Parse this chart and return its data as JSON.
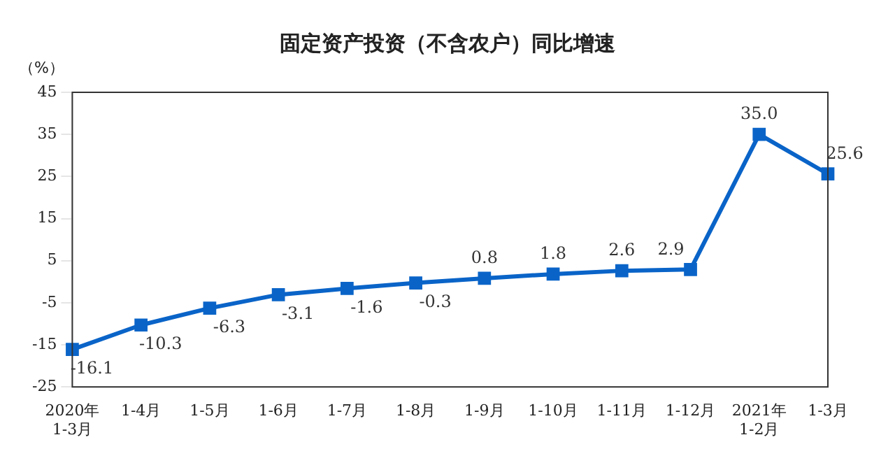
{
  "chart_data": {
    "type": "line",
    "title": "固定资产投资（不含农户）同比增速",
    "ylabel": "（%）",
    "categories": [
      "2020年 1-3月",
      "1-4月",
      "1-5月",
      "1-6月",
      "1-7月",
      "1-8月",
      "1-9月",
      "1-10月",
      "1-11月",
      "1-12月",
      "2021年 1-2月",
      "1-3月"
    ],
    "series": [
      {
        "color": "#0a64c8",
        "values": [
          -16.1,
          -10.3,
          -6.3,
          -3.1,
          -1.6,
          -0.3,
          0.8,
          1.8,
          2.6,
          2.9,
          35.0,
          25.6
        ]
      }
    ],
    "value_labels": [
      "-16.1",
      "-10.3",
      "-6.3",
      "-3.1",
      "-1.6",
      "-0.3",
      "0.8",
      "1.8",
      "2.6",
      "2.9",
      "35.0",
      "25.6"
    ],
    "ylim": [
      -25,
      45
    ],
    "yticks": [
      -25,
      -15,
      -5,
      5,
      15,
      25,
      35,
      45
    ],
    "grid": false,
    "legend": false,
    "marker": "square",
    "line_style": "solid"
  }
}
